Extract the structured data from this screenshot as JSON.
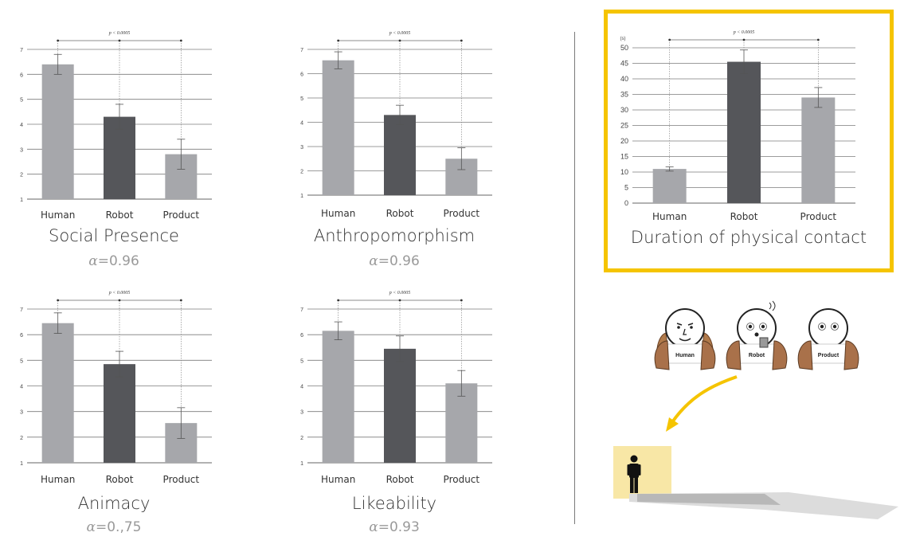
{
  "colors": {
    "light_bar": "#a6a7ab",
    "dark_bar": "#55565a",
    "highlight": "#f5c400",
    "alpha_text": "#9a9a9a"
  },
  "chart_data": [
    {
      "type": "bar",
      "title": "Social Presence",
      "alpha": "0.96",
      "categories": [
        "Human",
        "Robot",
        "Product"
      ],
      "values": [
        6.4,
        4.3,
        2.8
      ],
      "errors": [
        0.4,
        0.5,
        0.6
      ],
      "bar_colors": [
        "#a6a7ab",
        "#55565a",
        "#a6a7ab"
      ],
      "yticks": [
        "1",
        "2",
        "3",
        "4",
        "5",
        "6",
        "7"
      ],
      "ylim": [
        1,
        7
      ],
      "significance": "p < 0.0005",
      "grid": true
    },
    {
      "type": "bar",
      "title": "Anthropomorphism",
      "alpha": "0.96",
      "categories": [
        "Human",
        "Robot",
        "Product"
      ],
      "values": [
        6.55,
        4.3,
        2.5
      ],
      "errors": [
        0.35,
        0.4,
        0.45
      ],
      "bar_colors": [
        "#a6a7ab",
        "#55565a",
        "#a6a7ab"
      ],
      "yticks": [
        "1",
        "2",
        "3",
        "4",
        "5",
        "6",
        "7"
      ],
      "ylim": [
        1,
        7
      ],
      "significance": "p < 0.0005",
      "grid": true
    },
    {
      "type": "bar",
      "title": "Animacy",
      "alpha": "0.,75",
      "categories": [
        "Human",
        "Robot",
        "Product"
      ],
      "values": [
        6.45,
        4.85,
        2.55
      ],
      "errors": [
        0.4,
        0.5,
        0.6
      ],
      "bar_colors": [
        "#a6a7ab",
        "#55565a",
        "#a6a7ab"
      ],
      "yticks": [
        "1",
        "2",
        "3",
        "4",
        "5",
        "6",
        "7"
      ],
      "ylim": [
        1,
        7
      ],
      "significance": "p < 0.0005",
      "grid": true
    },
    {
      "type": "bar",
      "title": "Likeability",
      "alpha": "0.93",
      "categories": [
        "Human",
        "Robot",
        "Product"
      ],
      "values": [
        6.15,
        5.45,
        4.1
      ],
      "errors": [
        0.35,
        0.5,
        0.5
      ],
      "bar_colors": [
        "#a6a7ab",
        "#55565a",
        "#a6a7ab"
      ],
      "yticks": [
        "1",
        "2",
        "3",
        "4",
        "5",
        "6",
        "7"
      ],
      "ylim": [
        1,
        7
      ],
      "significance": "p < 0.0005",
      "grid": true
    },
    {
      "type": "bar",
      "title": "Duration of physical contact",
      "unit": "(s)",
      "categories": [
        "Human",
        "Robot",
        "Product"
      ],
      "values": [
        11,
        45.5,
        34
      ],
      "errors": [
        0.7,
        3.8,
        3.2
      ],
      "bar_colors": [
        "#a6a7ab",
        "#55565a",
        "#a6a7ab"
      ],
      "yticks": [
        "0",
        "5",
        "10",
        "15",
        "20",
        "25",
        "30",
        "35",
        "40",
        "45",
        "50"
      ],
      "ylim": [
        0,
        50
      ],
      "significance": "p < 0.0005",
      "grid": true
    }
  ],
  "illustration": {
    "face_labels": [
      "Human",
      "Robot",
      "Product"
    ]
  }
}
